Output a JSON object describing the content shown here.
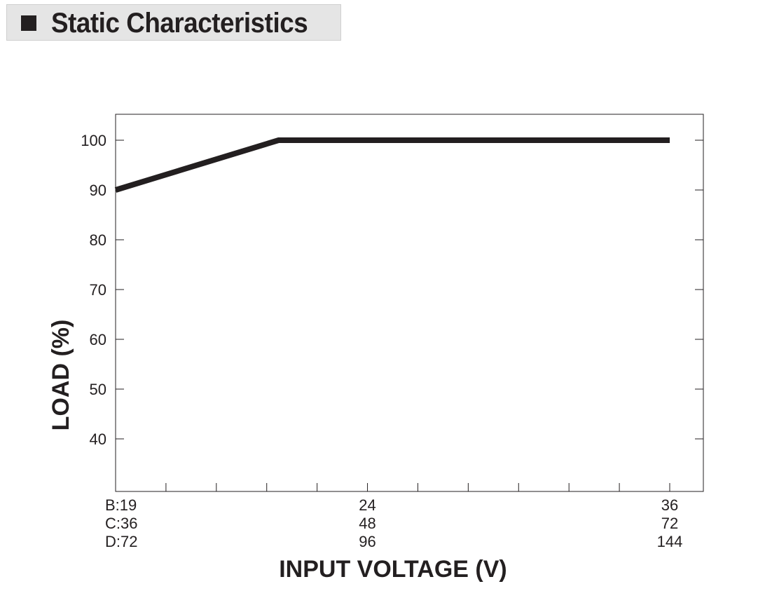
{
  "header": {
    "title": "Static Characteristics"
  },
  "chart_data": {
    "type": "line",
    "title": "",
    "xlabel": "INPUT VOLTAGE (V)",
    "ylabel": "LOAD (%)",
    "ylim": [
      30,
      105
    ],
    "y_ticks": [
      40,
      50,
      60,
      70,
      80,
      90,
      100
    ],
    "x_range_fraction": [
      0,
      1
    ],
    "x_tick_labels": [
      {
        "position": 0,
        "lines": [
          "B:19",
          "C:36",
          "D:72"
        ],
        "align": "start"
      },
      {
        "position": 0.4545,
        "lines": [
          "24",
          "48",
          "96"
        ],
        "align": "middle"
      },
      {
        "position": 1,
        "lines": [
          "36",
          "72",
          "144"
        ],
        "align": "middle"
      }
    ],
    "minor_tick_count": 11,
    "series": [
      {
        "x_B": [
          19,
          24,
          36
        ],
        "x_C": [
          36,
          48,
          72
        ],
        "x_D": [
          72,
          96,
          144
        ],
        "values": [
          90,
          100,
          100
        ]
      }
    ],
    "line_color": "#231f20",
    "grid": false
  }
}
